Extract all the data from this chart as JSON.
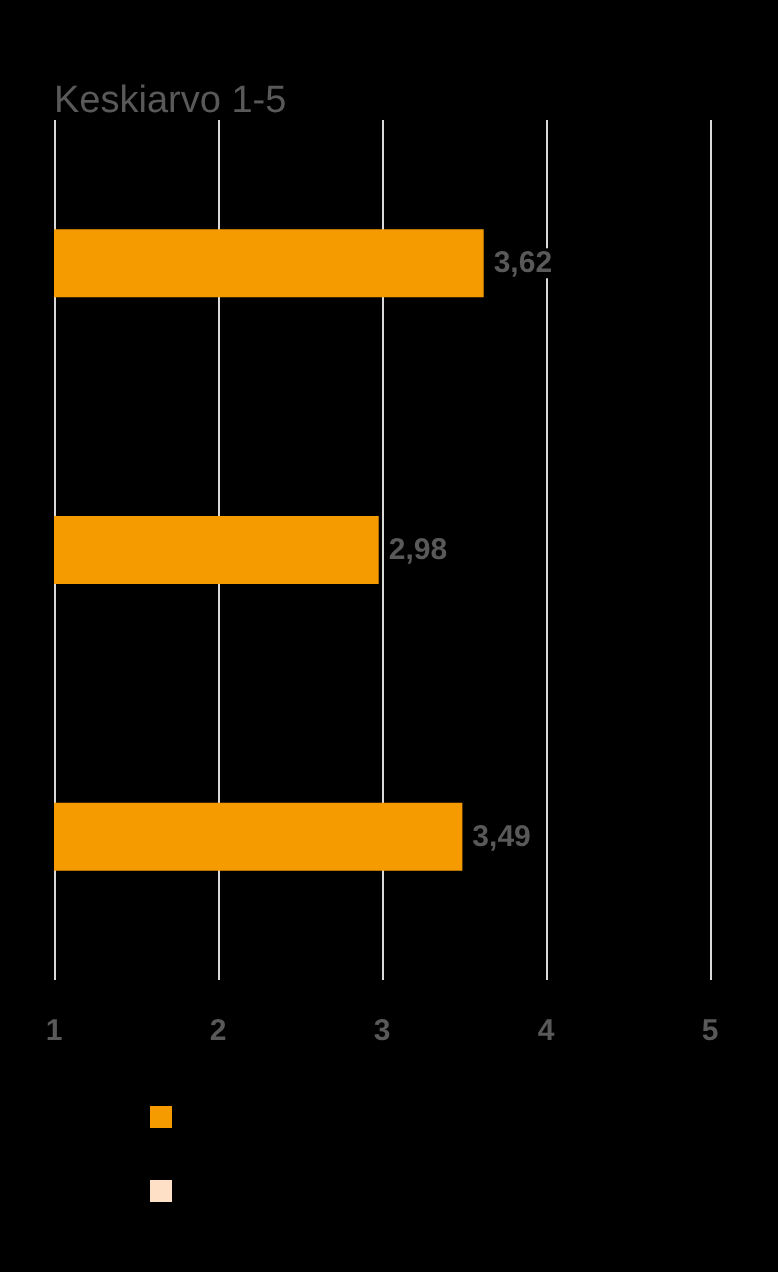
{
  "chart_data": {
    "type": "bar",
    "orientation": "horizontal",
    "title": "Keskiarvo 1-5",
    "categories": [
      null,
      null,
      null
    ],
    "series": [
      {
        "color": "#f59b00",
        "values": [
          3.62,
          2.98,
          3.49
        ],
        "value_labels": [
          "3,62",
          "2,98",
          "3,49"
        ]
      },
      {
        "color": "#fde0c5",
        "values": [
          null,
          null,
          null
        ]
      }
    ],
    "xlim": [
      1,
      5
    ],
    "xticks": [
      1,
      2,
      3,
      4,
      5
    ],
    "grid": "x"
  }
}
